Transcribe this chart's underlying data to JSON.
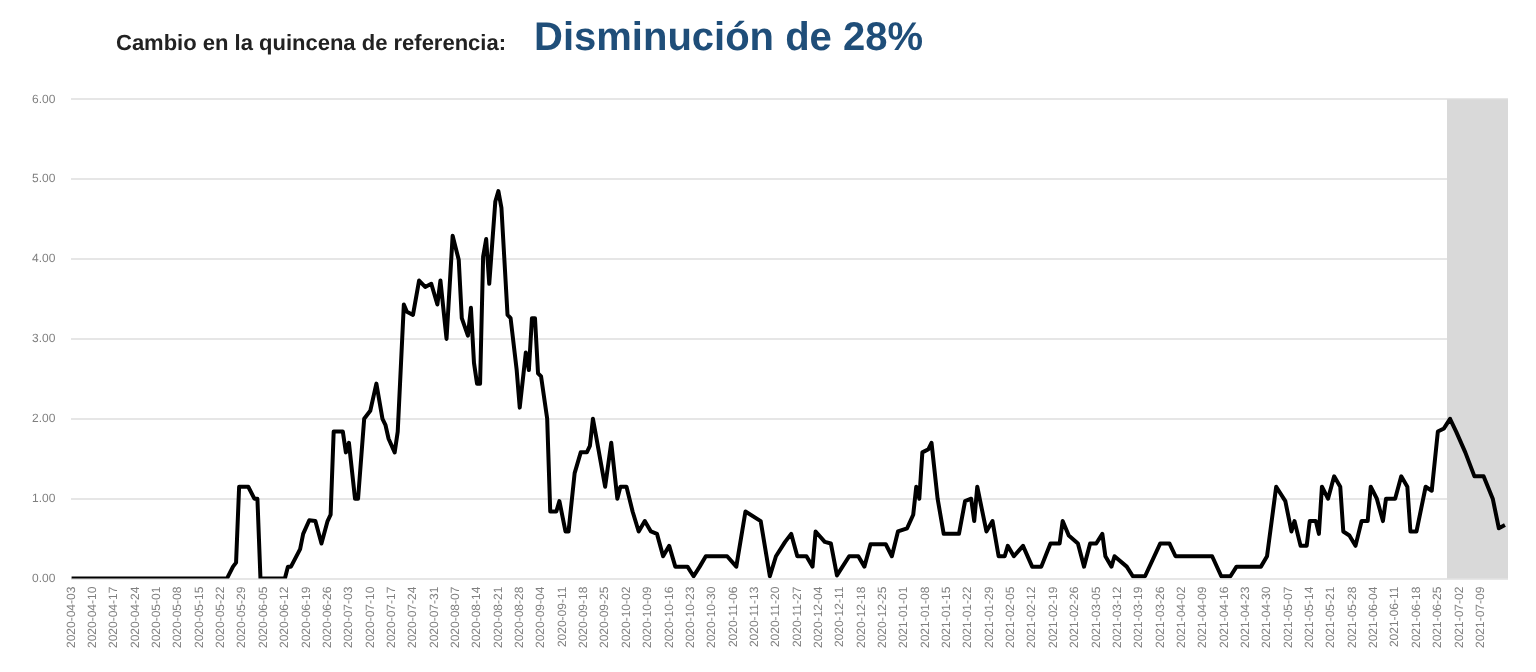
{
  "chart_data": {
    "type": "line",
    "title": "Cambio en la quincena de referencia:",
    "subtitle": "Disminución de 28%",
    "xlim": [
      "2020-04-03",
      "2021-07-18"
    ],
    "xticks": [
      "2020-04-03",
      "2020-04-10",
      "2020-04-17",
      "2020-04-24",
      "2020-05-01",
      "2020-05-08",
      "2020-05-15",
      "2020-05-22",
      "2020-05-29",
      "2020-06-05",
      "2020-06-12",
      "2020-06-19",
      "2020-06-26",
      "2020-07-03",
      "2020-07-10",
      "2020-07-17",
      "2020-07-24",
      "2020-07-31",
      "2020-08-07",
      "2020-08-14",
      "2020-08-21",
      "2020-08-28",
      "2020-09-04",
      "2020-09-11",
      "2020-09-18",
      "2020-09-25",
      "2020-10-02",
      "2020-10-09",
      "2020-10-16",
      "2020-10-23",
      "2020-10-30",
      "2020-11-06",
      "2020-11-13",
      "2020-11-20",
      "2020-11-27",
      "2020-12-04",
      "2020-12-11",
      "2020-12-18",
      "2020-12-25",
      "2021-01-01",
      "2021-01-08",
      "2021-01-15",
      "2021-01-22",
      "2021-01-29",
      "2021-02-05",
      "2021-02-12",
      "2021-02-19",
      "2021-02-26",
      "2021-03-05",
      "2021-03-12",
      "2021-03-19",
      "2021-03-26",
      "2021-04-02",
      "2021-04-09",
      "2021-04-16",
      "2021-04-23",
      "2021-04-30",
      "2021-05-07",
      "2021-05-14",
      "2021-05-21",
      "2021-05-28",
      "2021-06-04",
      "2021-06-11",
      "2021-06-18",
      "2021-06-25",
      "2021-07-02",
      "2021-07-09"
    ],
    "ylim": [
      0,
      6
    ],
    "yticks": [
      {
        "value": 0,
        "label": "0.00"
      },
      {
        "value": 1,
        "label": "1.00"
      },
      {
        "value": 2,
        "label": "2.00"
      },
      {
        "value": 3,
        "label": "3.00"
      },
      {
        "value": 4,
        "label": "4.00"
      },
      {
        "value": 5,
        "label": "5.00"
      },
      {
        "value": 6,
        "label": "6.00"
      }
    ],
    "grid": "y",
    "legend": false,
    "marker": "none",
    "line_style": "solid",
    "bands": [
      {
        "axis": "x",
        "from": "2021-06-28",
        "to": "2021-07-18",
        "color": "#d9d9d9"
      }
    ],
    "series": [
      {
        "color": "#000000",
        "x": [
          "2020-04-03",
          "2020-05-24",
          "2020-05-26",
          "2020-05-27",
          "2020-05-28",
          "2020-05-31",
          "2020-06-02",
          "2020-06-03",
          "2020-06-04",
          "2020-06-12",
          "2020-06-13",
          "2020-06-14",
          "2020-06-17",
          "2020-06-18",
          "2020-06-20",
          "2020-06-22",
          "2020-06-24",
          "2020-06-26",
          "2020-06-27",
          "2020-06-28",
          "2020-07-01",
          "2020-07-02",
          "2020-07-03",
          "2020-07-05",
          "2020-07-06",
          "2020-07-08",
          "2020-07-10",
          "2020-07-12",
          "2020-07-14",
          "2020-07-15",
          "2020-07-16",
          "2020-07-18",
          "2020-07-19",
          "2020-07-21",
          "2020-07-22",
          "2020-07-24",
          "2020-07-26",
          "2020-07-28",
          "2020-07-30",
          "2020-08-01",
          "2020-08-02",
          "2020-08-04",
          "2020-08-06",
          "2020-08-08",
          "2020-08-09",
          "2020-08-11",
          "2020-08-12",
          "2020-08-13",
          "2020-08-14",
          "2020-08-15",
          "2020-08-16",
          "2020-08-17",
          "2020-08-18",
          "2020-08-20",
          "2020-08-21",
          "2020-08-22",
          "2020-08-24",
          "2020-08-25",
          "2020-08-27",
          "2020-08-28",
          "2020-08-30",
          "2020-08-31",
          "2020-09-01",
          "2020-09-02",
          "2020-09-03",
          "2020-09-04",
          "2020-09-06",
          "2020-09-07",
          "2020-09-09",
          "2020-09-10",
          "2020-09-12",
          "2020-09-13",
          "2020-09-15",
          "2020-09-17",
          "2020-09-19",
          "2020-09-20",
          "2020-09-21",
          "2020-09-22",
          "2020-09-25",
          "2020-09-27",
          "2020-09-29",
          "2020-09-30",
          "2020-10-02",
          "2020-10-04",
          "2020-10-06",
          "2020-10-08",
          "2020-10-10",
          "2020-10-12",
          "2020-10-14",
          "2020-10-16",
          "2020-10-18",
          "2020-10-22",
          "2020-10-24",
          "2020-10-26",
          "2020-10-28",
          "2020-11-04",
          "2020-11-07",
          "2020-11-10",
          "2020-11-15",
          "2020-11-18",
          "2020-11-20",
          "2020-11-23",
          "2020-11-25",
          "2020-11-27",
          "2020-11-30",
          "2020-12-02",
          "2020-12-03",
          "2020-12-06",
          "2020-12-08",
          "2020-12-10",
          "2020-12-14",
          "2020-12-17",
          "2020-12-19",
          "2020-12-21",
          "2020-12-26",
          "2020-12-28",
          "2020-12-30",
          "2021-01-02",
          "2021-01-04",
          "2021-01-05",
          "2021-01-06",
          "2021-01-07",
          "2021-01-09",
          "2021-01-10",
          "2021-01-12",
          "2021-01-14",
          "2021-01-19",
          "2021-01-21",
          "2021-01-23",
          "2021-01-24",
          "2021-01-25",
          "2021-01-28",
          "2021-01-30",
          "2021-02-01",
          "2021-02-03",
          "2021-02-04",
          "2021-02-06",
          "2021-02-09",
          "2021-02-12",
          "2021-02-15",
          "2021-02-18",
          "2021-02-21",
          "2021-02-22",
          "2021-02-24",
          "2021-02-27",
          "2021-03-01",
          "2021-03-03",
          "2021-03-05",
          "2021-03-07",
          "2021-03-08",
          "2021-03-10",
          "2021-03-11",
          "2021-03-15",
          "2021-03-17",
          "2021-03-21",
          "2021-03-26",
          "2021-03-29",
          "2021-03-31",
          "2021-04-12",
          "2021-04-15",
          "2021-04-18",
          "2021-04-20",
          "2021-04-28",
          "2021-04-30",
          "2021-05-03",
          "2021-05-06",
          "2021-05-08",
          "2021-05-09",
          "2021-05-11",
          "2021-05-13",
          "2021-05-14",
          "2021-05-16",
          "2021-05-17",
          "2021-05-18",
          "2021-05-20",
          "2021-05-22",
          "2021-05-24",
          "2021-05-25",
          "2021-05-27",
          "2021-05-29",
          "2021-05-31",
          "2021-06-02",
          "2021-06-03",
          "2021-06-05",
          "2021-06-07",
          "2021-06-08",
          "2021-06-11",
          "2021-06-13",
          "2021-06-15",
          "2021-06-16",
          "2021-06-18",
          "2021-06-21",
          "2021-06-23",
          "2021-06-25",
          "2021-06-27",
          "2021-06-29",
          "2021-07-01",
          "2021-07-04",
          "2021-07-07",
          "2021-07-10",
          "2021-07-13",
          "2021-07-15",
          "2021-07-17"
        ],
        "values": [
          0,
          0,
          0.15,
          0.2,
          1.15,
          1.15,
          1.0,
          1.0,
          0,
          0,
          0.15,
          0.15,
          0.37,
          0.56,
          0.73,
          0.72,
          0.44,
          0.72,
          0.8,
          1.84,
          1.84,
          1.58,
          1.7,
          1.0,
          1.0,
          2.0,
          2.1,
          2.44,
          2.0,
          1.92,
          1.75,
          1.58,
          1.84,
          3.43,
          3.34,
          3.3,
          3.73,
          3.65,
          3.69,
          3.43,
          3.73,
          3.0,
          4.29,
          3.99,
          3.26,
          3.04,
          3.39,
          2.7,
          2.44,
          2.44,
          4.03,
          4.25,
          3.69,
          4.72,
          4.85,
          4.64,
          3.3,
          3.26,
          2.61,
          2.14,
          2.83,
          2.61,
          3.26,
          3.26,
          2.57,
          2.53,
          2.0,
          0.84,
          0.84,
          0.97,
          0.59,
          0.59,
          1.32,
          1.58,
          1.58,
          1.66,
          2.0,
          1.79,
          1.15,
          1.7,
          1.0,
          1.15,
          1.15,
          0.84,
          0.59,
          0.72,
          0.59,
          0.56,
          0.28,
          0.41,
          0.15,
          0.15,
          0.03,
          0.15,
          0.28,
          0.28,
          0.15,
          0.84,
          0.72,
          0.03,
          0.28,
          0.46,
          0.56,
          0.28,
          0.28,
          0.15,
          0.59,
          0.46,
          0.44,
          0.04,
          0.28,
          0.28,
          0.15,
          0.43,
          0.43,
          0.28,
          0.59,
          0.63,
          0.8,
          1.15,
          1.0,
          1.58,
          1.62,
          1.7,
          1.0,
          0.56,
          0.56,
          0.97,
          1.0,
          0.72,
          1.15,
          0.59,
          0.72,
          0.28,
          0.28,
          0.41,
          0.28,
          0.41,
          0.15,
          0.15,
          0.44,
          0.44,
          0.72,
          0.54,
          0.44,
          0.15,
          0.44,
          0.44,
          0.56,
          0.28,
          0.15,
          0.28,
          0.15,
          0.03,
          0.03,
          0.44,
          0.44,
          0.28,
          0.28,
          0.03,
          0.03,
          0.15,
          0.15,
          0.28,
          1.15,
          0.97,
          0.59,
          0.72,
          0.41,
          0.41,
          0.72,
          0.72,
          0.56,
          1.15,
          1.0,
          1.28,
          1.15,
          0.59,
          0.54,
          0.41,
          0.72,
          0.72,
          1.15,
          1.0,
          0.72,
          1.0,
          1.0,
          1.28,
          1.15,
          0.59,
          0.59,
          1.15,
          1.1,
          1.84,
          1.88,
          2.0,
          1.84,
          1.58,
          1.28,
          1.28,
          1.0,
          0.63,
          0.67
        ]
      }
    ]
  }
}
